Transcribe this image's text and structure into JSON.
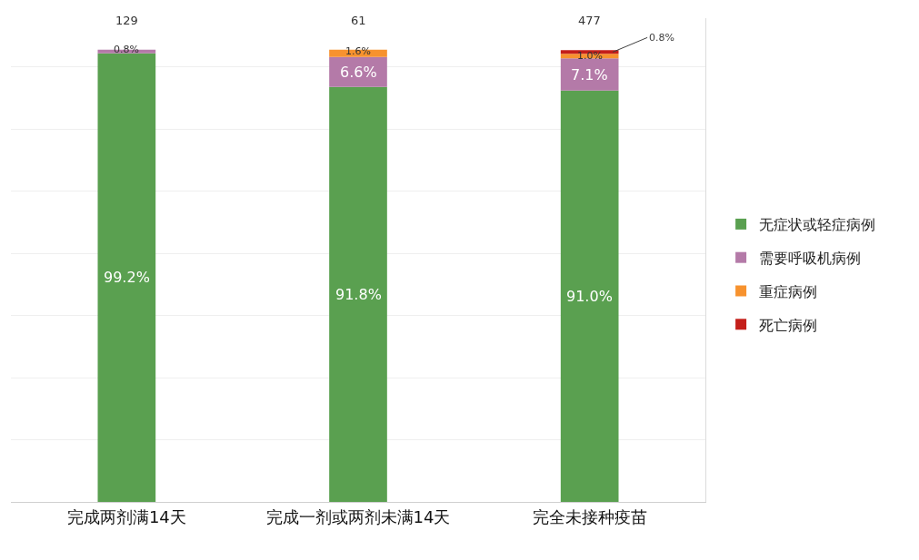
{
  "chart_data": {
    "type": "bar",
    "stacked": true,
    "categories": [
      "完成两剂满14天",
      "完成一剂或两剂未满14天",
      "完全未接种疫苗"
    ],
    "series": [
      {
        "name": "无症状或轻症病例",
        "color": "#5aa050",
        "values": [
          99.2,
          91.8,
          91.0
        ],
        "value_labels": [
          "99.2%",
          "91.8%",
          "91.0%"
        ]
      },
      {
        "name": "需要呼吸机病例",
        "color": "#b47aa8",
        "values": [
          0.8,
          6.6,
          7.1
        ],
        "value_labels": [
          "0.8%",
          "6.6%",
          "7.1%"
        ]
      },
      {
        "name": "重症病例",
        "color": "#f7922e",
        "values": [
          null,
          1.6,
          1.0
        ],
        "value_labels": [
          null,
          "1.6%",
          "1.0%"
        ]
      },
      {
        "name": "死亡病例",
        "color": "#c41f1a",
        "values": [
          null,
          null,
          0.8
        ],
        "value_labels": [
          null,
          null,
          "0.8%"
        ]
      }
    ],
    "annotations": [
      "129",
      "61",
      "477"
    ],
    "ylim": [
      0,
      107
    ],
    "yticks": [
      {
        "value": 0,
        "label": null
      },
      {
        "value": 13.75,
        "label": null
      },
      {
        "value": 27.5,
        "label": null
      },
      {
        "value": 41.25,
        "label": null
      },
      {
        "value": 55,
        "label": null
      },
      {
        "value": 68.75,
        "label": null
      },
      {
        "value": 82.5,
        "label": null
      },
      {
        "value": 96.25,
        "label": null
      }
    ],
    "grid": "y",
    "legend": "right",
    "tick_labels": "x"
  }
}
